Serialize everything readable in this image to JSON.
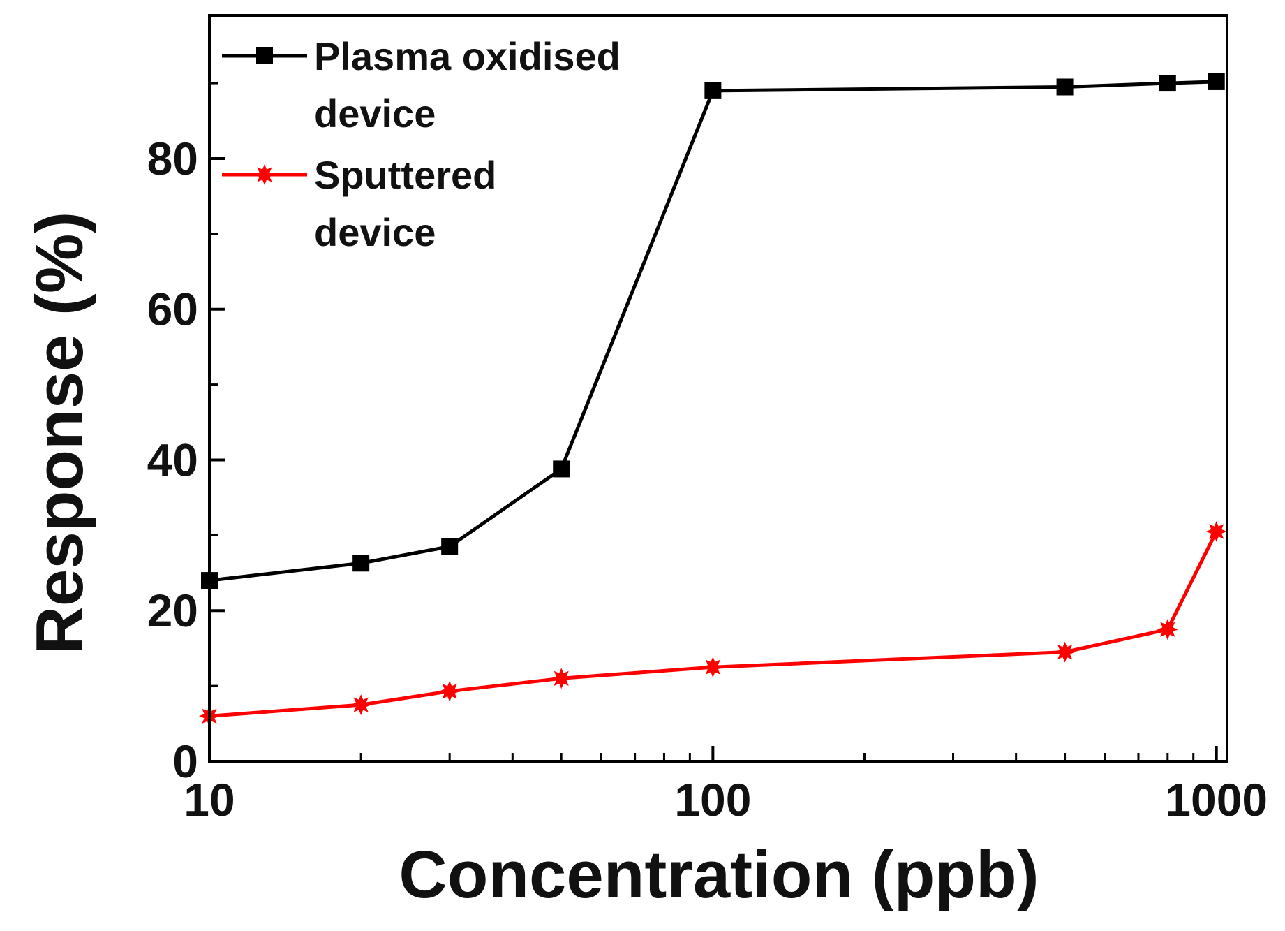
{
  "chart_data": {
    "type": "line",
    "title": "",
    "xlabel": "Concentration (ppb)",
    "ylabel": "Response (%)",
    "xscale": "log",
    "xlim": [
      10,
      1050
    ],
    "ylim": [
      0,
      99
    ],
    "xticks": [
      10,
      100,
      1000
    ],
    "xtick_labels": [
      "10",
      "100",
      "1000"
    ],
    "yticks": [
      0,
      20,
      40,
      60,
      80
    ],
    "ytick_labels": [
      "0",
      "20",
      "40",
      "60",
      "80"
    ],
    "grid": false,
    "legend_position": "top-left",
    "series": [
      {
        "name": "Plasma oxidised device",
        "legend_lines": [
          "Plasma oxidised",
          "device"
        ],
        "color": "#000000",
        "marker": "square",
        "x": [
          10,
          20,
          30,
          50,
          100,
          500,
          800,
          1000
        ],
        "y": [
          24,
          26.3,
          28.5,
          38.8,
          89,
          89.5,
          90,
          90.2
        ]
      },
      {
        "name": "Sputtered device",
        "legend_lines": [
          "Sputtered",
          "device"
        ],
        "color": "#ff0000",
        "marker": "star",
        "x": [
          10,
          20,
          30,
          50,
          100,
          500,
          800,
          1000
        ],
        "y": [
          6,
          7.5,
          9.3,
          11,
          12.5,
          14.5,
          17.5,
          30.5
        ]
      }
    ]
  }
}
